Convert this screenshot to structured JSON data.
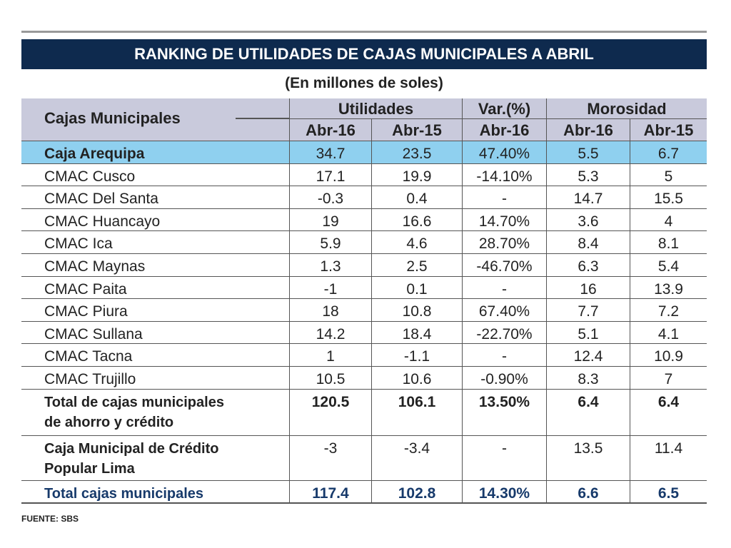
{
  "title": "RANKING DE UTILIDADES  DE CAJAS MUNICIPALES A ABRIL",
  "subtitle": "(En millones de soles)",
  "header": {
    "first": "Cajas Municipales",
    "groups": [
      "Utilidades",
      "Var.(%)",
      "Morosidad"
    ],
    "sub": [
      "Abr-16",
      "Abr-15",
      "Abr-16",
      "Abr-16",
      "Abr-15"
    ]
  },
  "rows": [
    [
      "Caja Arequipa",
      "34.7",
      "23.5",
      "47.40%",
      "5.5",
      "6.7"
    ],
    [
      "CMAC Cusco",
      "17.1",
      "19.9",
      "-14.10%",
      "5.3",
      "5"
    ],
    [
      "CMAC Del Santa",
      "-0.3",
      "0.4",
      "-",
      "14.7",
      "15.5"
    ],
    [
      "CMAC Huancayo",
      "19",
      "16.6",
      "14.70%",
      "3.6",
      "4"
    ],
    [
      "CMAC Ica",
      "5.9",
      "4.6",
      "28.70%",
      "8.4",
      "8.1"
    ],
    [
      "CMAC Maynas",
      "1.3",
      "2.5",
      "-46.70%",
      "6.3",
      "5.4"
    ],
    [
      "CMAC Paita",
      "-1",
      "0.1",
      "-",
      "16",
      "13.9"
    ],
    [
      "CMAC Piura",
      "18",
      "10.8",
      "67.40%",
      "7.7",
      "7.2"
    ],
    [
      "CMAC Sullana",
      "14.2",
      "18.4",
      "-22.70%",
      "5.1",
      "4.1"
    ],
    [
      "CMAC Tacna",
      "1",
      "-1.1",
      "-",
      "12.4",
      "10.9"
    ],
    [
      "CMAC Trujillo",
      "10.5",
      "10.6",
      "-0.90%",
      "8.3",
      "7"
    ],
    [
      [
        "Total de cajas municipales",
        "de ahorro y crédito"
      ],
      "120.5",
      "106.1",
      "13.50%",
      "6.4",
      "6.4"
    ],
    [
      [
        "Caja Municipal de Crédito",
        "Popular Lima"
      ],
      "-3",
      "-3.4",
      "-",
      "13.5",
      "11.4"
    ],
    [
      "Total cajas municipales",
      "117.4",
      "102.8",
      "14.30%",
      "6.6",
      "6.5"
    ]
  ],
  "source": "FUENTE: SBS"
}
